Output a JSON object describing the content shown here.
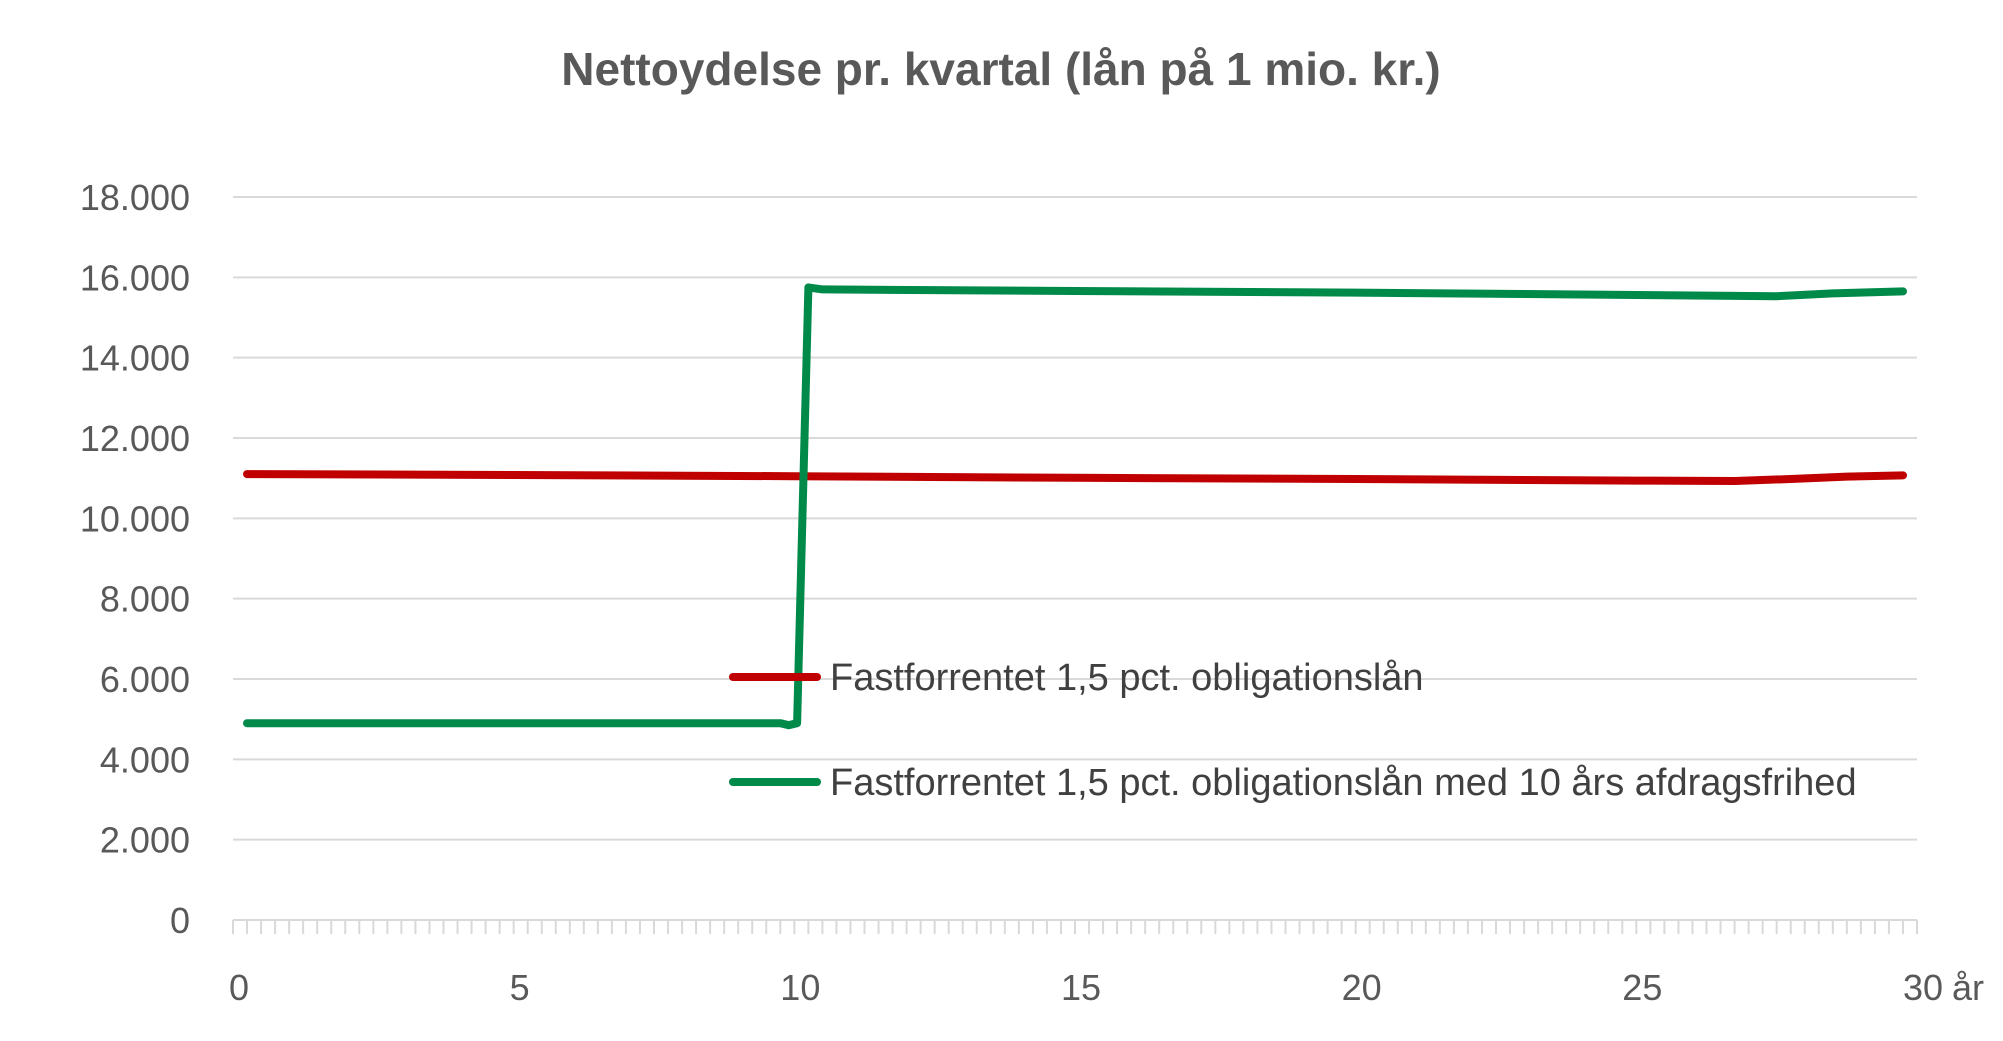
{
  "chart_data": {
    "type": "line",
    "title": "Nettoydelse pr. kvartal (lån på 1 mio. kr.)",
    "xlabel": "år",
    "ylabel": "",
    "xlim": [
      0,
      30
    ],
    "ylim": [
      0,
      18000
    ],
    "x_ticks": [
      0,
      5,
      10,
      15,
      20,
      25,
      30
    ],
    "x_tick_labels": [
      "0",
      "5",
      "10",
      "15",
      "20",
      "25",
      "30"
    ],
    "y_ticks": [
      0,
      2000,
      4000,
      6000,
      8000,
      10000,
      12000,
      14000,
      16000,
      18000
    ],
    "y_tick_labels": [
      "0",
      "2.000",
      "4.000",
      "6.000",
      "8.000",
      "10.000",
      "12.000",
      "14.000",
      "16.000",
      "18.000"
    ],
    "x_minor_step": 0.25,
    "grid": true,
    "legend_position": "center-right",
    "series": [
      {
        "name": "Fastforrentet 1,5 pct. obligationslån",
        "color": "#c00000",
        "x": [
          0.25,
          5,
          10,
          15,
          20,
          25,
          26.75,
          27.75,
          28.75,
          29.75
        ],
        "y": [
          11100,
          11080,
          11050,
          11010,
          10980,
          10940,
          10930,
          10980,
          11040,
          11070
        ]
      },
      {
        "name": "Fastforrentet 1,5 pct. obligationslån med 10 års afdragsfrihed",
        "color": "#008a4a",
        "x": [
          0.25,
          9.75,
          9.9,
          10.05,
          10.25,
          10.5,
          15,
          20,
          25,
          27.5,
          28.5,
          29.75
        ],
        "y": [
          4900,
          4900,
          4850,
          4900,
          15750,
          15700,
          15660,
          15620,
          15560,
          15530,
          15600,
          15650
        ]
      }
    ]
  }
}
